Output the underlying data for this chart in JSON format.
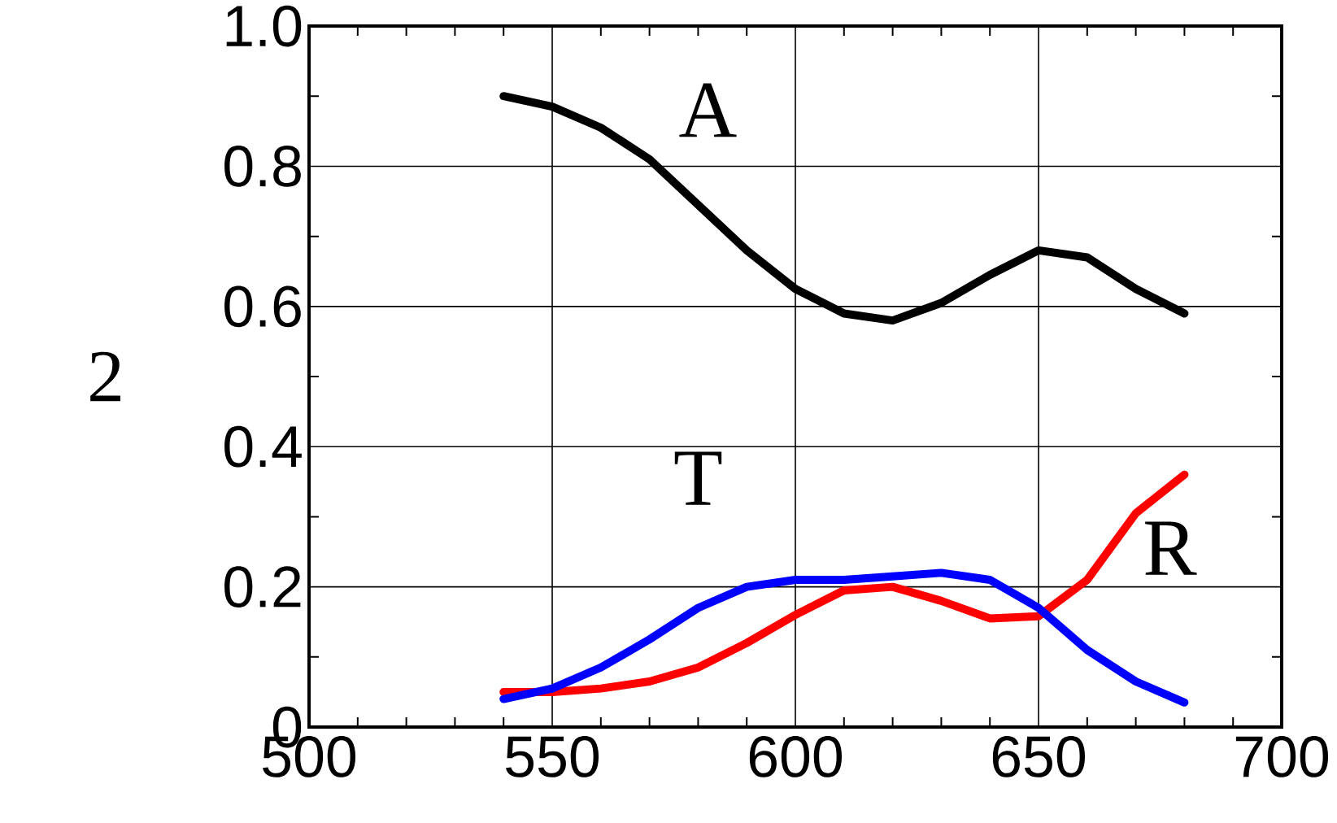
{
  "chart_data": {
    "type": "line",
    "ylabel": "2",
    "x": [
      540,
      550,
      560,
      570,
      580,
      590,
      600,
      610,
      620,
      630,
      640,
      650,
      660,
      670,
      680
    ],
    "series": [
      {
        "color": "#000000",
        "values": [
          0.9,
          0.885,
          0.855,
          0.81,
          0.745,
          0.68,
          0.625,
          0.59,
          0.58,
          0.605,
          0.645,
          0.68,
          0.67,
          0.625,
          0.59
        ]
      },
      {
        "color": "#ff0000",
        "values": [
          0.05,
          0.05,
          0.055,
          0.065,
          0.085,
          0.12,
          0.16,
          0.195,
          0.2,
          0.18,
          0.155,
          0.158,
          0.21,
          0.305,
          0.36
        ]
      },
      {
        "color": "#0000ff",
        "values": [
          0.04,
          0.055,
          0.085,
          0.125,
          0.17,
          0.2,
          0.21,
          0.21,
          0.215,
          0.22,
          0.21,
          0.17,
          0.11,
          0.065,
          0.035
        ]
      }
    ],
    "annotations": [
      "A",
      "T",
      "R"
    ],
    "xlim": [
      500,
      700
    ],
    "ylim": [
      0,
      1
    ],
    "xticks": [
      500,
      550,
      600,
      650,
      700
    ],
    "yticks": [
      {
        "value": 0,
        "label": "0"
      },
      0.2,
      0.4,
      0.6,
      0.8,
      {
        "value": 1,
        "label": "1.0"
      }
    ],
    "grid": true,
    "line_style": "solid",
    "marker": "none"
  }
}
